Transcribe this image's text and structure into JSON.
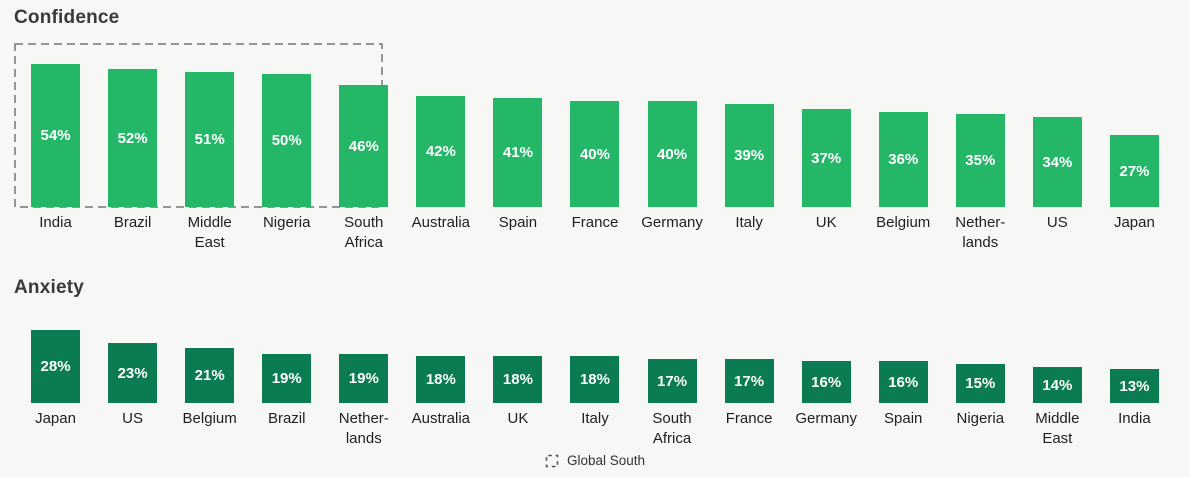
{
  "background_color": "#f7f7f6",
  "accent_colors": {
    "confidence_bar": "#24b768",
    "anxiety_bar": "#0b7b52",
    "highlight_outline": "#757575"
  },
  "legend": {
    "label": "Global South",
    "position": "bottom-center",
    "icon": "dashed-box-icon"
  },
  "chart_data": [
    {
      "type": "bar",
      "title": "Confidence",
      "categories": [
        "India",
        "Brazil",
        "Middle\nEast",
        "Nigeria",
        "South\nAfrica",
        "Australia",
        "Spain",
        "France",
        "Germany",
        "Italy",
        "UK",
        "Belgium",
        "Nether-\nlands",
        "US",
        "Japan"
      ],
      "values": [
        54,
        52,
        51,
        50,
        46,
        42,
        41,
        40,
        40,
        39,
        37,
        36,
        35,
        34,
        27
      ],
      "value_suffix": "%",
      "value_labels": "inside-bar-white",
      "bar_color": "#24b768",
      "xlabel": "",
      "ylabel": "",
      "ylim": [
        0,
        54
      ],
      "grid": false,
      "axes_hidden": true,
      "highlight_group": {
        "label": "Global South",
        "from_index": 0,
        "to_index": 4,
        "style": "dashed-outline"
      }
    },
    {
      "type": "bar",
      "title": "Anxiety",
      "categories": [
        "Japan",
        "US",
        "Belgium",
        "Brazil",
        "Nether-\nlands",
        "Australia",
        "UK",
        "Italy",
        "South\nAfrica",
        "France",
        "Germany",
        "Spain",
        "Nigeria",
        "Middle\nEast",
        "India"
      ],
      "values": [
        28,
        23,
        21,
        19,
        19,
        18,
        18,
        18,
        17,
        17,
        16,
        16,
        15,
        14,
        13
      ],
      "value_suffix": "%",
      "value_labels": "inside-bar-white",
      "bar_color": "#0b7b52",
      "xlabel": "",
      "ylabel": "",
      "ylim": [
        0,
        28
      ],
      "grid": false,
      "axes_hidden": true
    }
  ]
}
